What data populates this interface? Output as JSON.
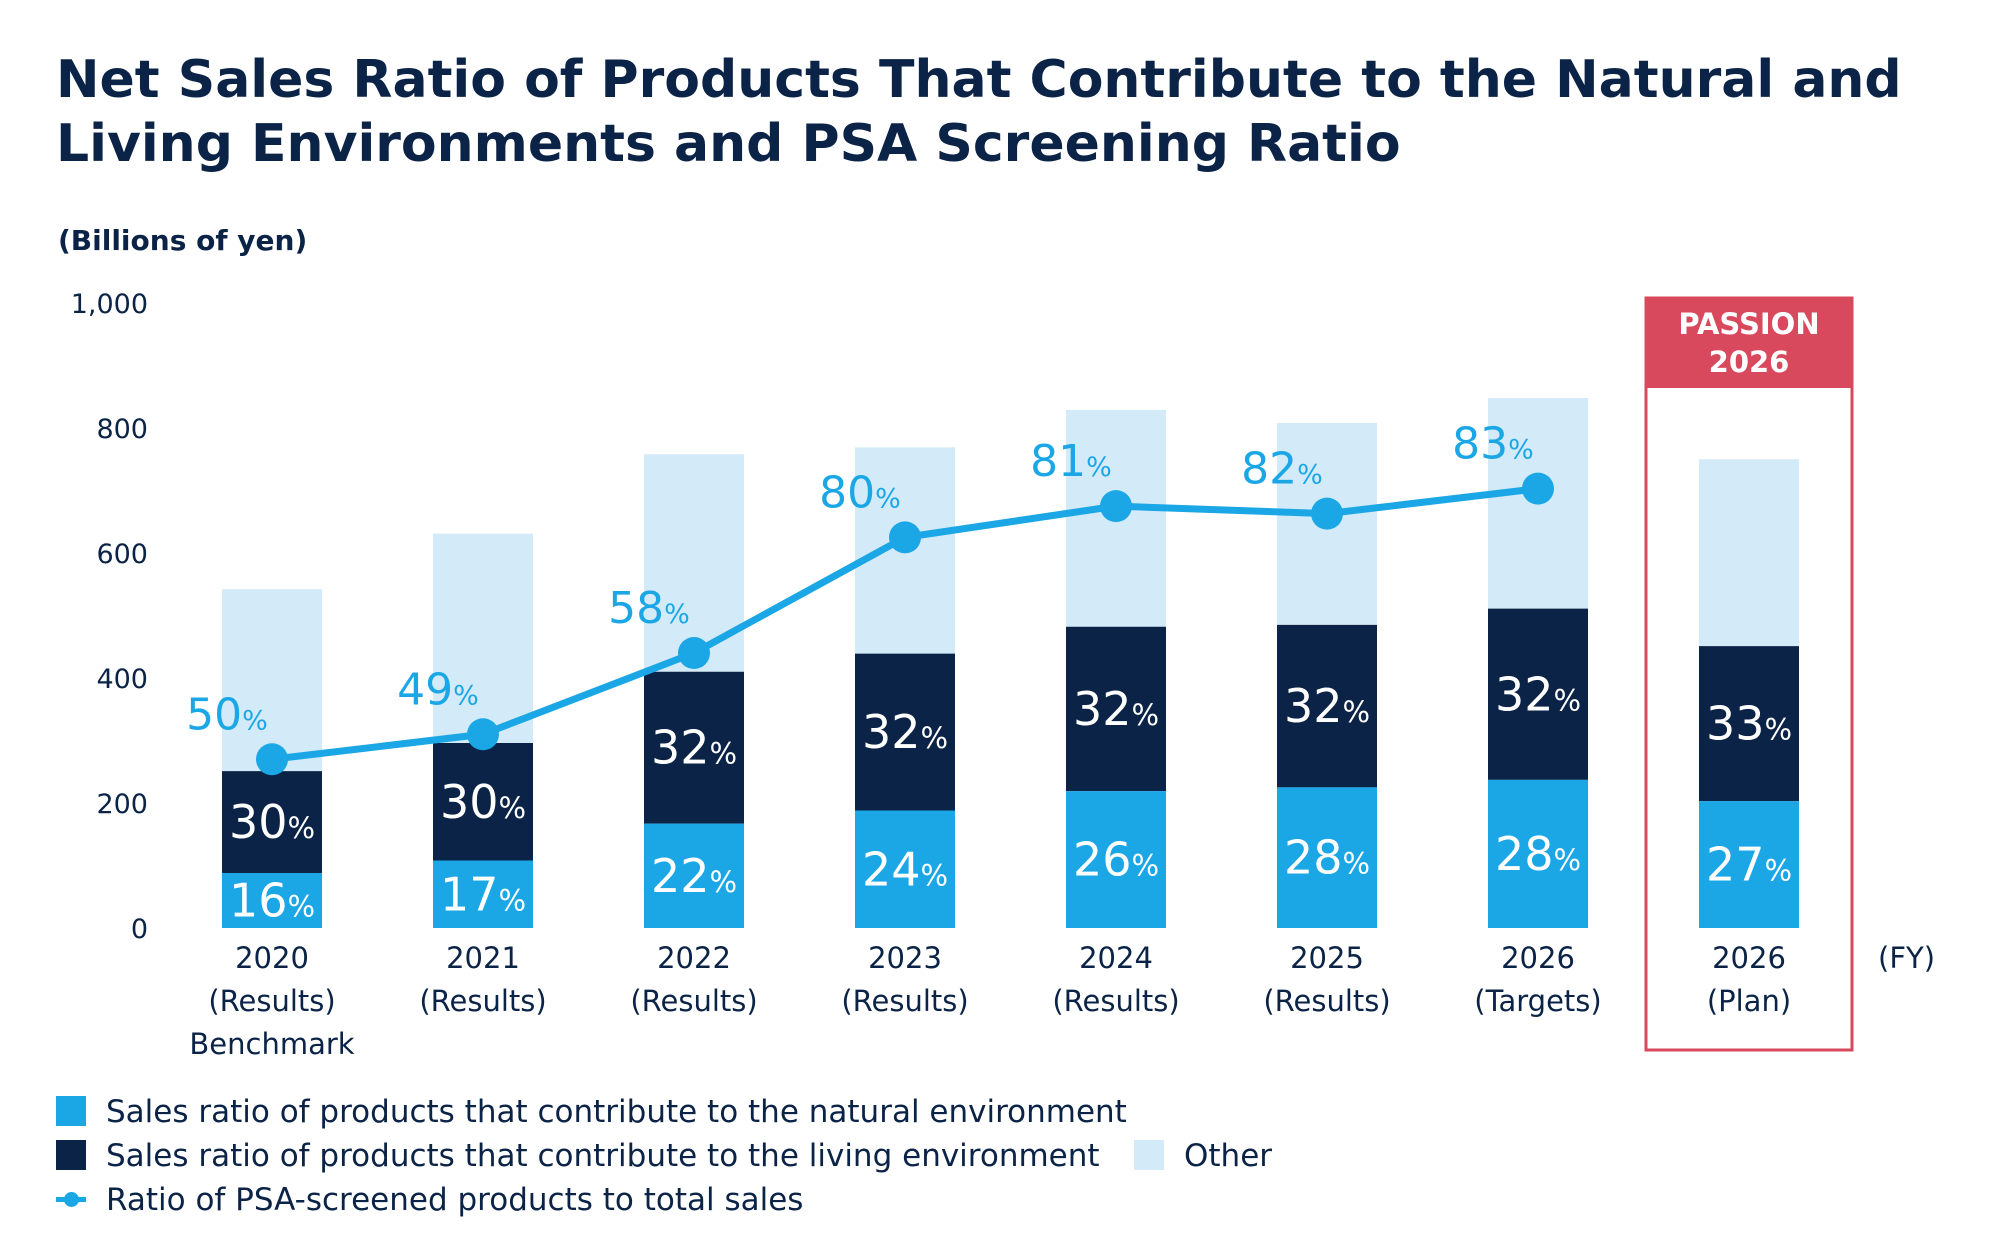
{
  "title": "Net Sales Ratio of Products That Contribute to the Natural and Living Environments and PSA Screening Ratio",
  "colors": {
    "natural": "#1ba7e6",
    "living": "#0b2346",
    "other": "#d3eaf8",
    "psa_line": "#1ba7e6",
    "passion_box": "#d9495e",
    "text_dark": "#0b2346"
  },
  "legend": {
    "natural": "Sales ratio of products that contribute to the natural environment",
    "living": "Sales ratio of products that contribute to the living environment",
    "other": "Other",
    "psa": "Ratio of PSA-screened products to total sales"
  },
  "chart_data": {
    "type": "bar",
    "ylabel": "(Billions of yen)",
    "xunit": "(FY)",
    "ylim": [
      0,
      1000
    ],
    "yticks": [
      "0",
      "200",
      "400",
      "600",
      "800",
      "1,000"
    ],
    "categories": [
      [
        "2020",
        "(Results)",
        "Benchmark"
      ],
      [
        "2021",
        "(Results)"
      ],
      [
        "2022",
        "(Results)"
      ],
      [
        "2023",
        "(Results)"
      ],
      [
        "2024",
        "(Results)"
      ],
      [
        "2025",
        "(Results)"
      ],
      [
        "2026",
        "(Targets)"
      ],
      [
        "2026",
        "(Plan)"
      ]
    ],
    "series": [
      {
        "name": "Sales ratio of products that contribute to the natural environment",
        "values": [
          88,
          108,
          167,
          188,
          219,
          225,
          237,
          203
        ],
        "labels": [
          "16",
          "17",
          "22",
          "24",
          "26",
          "28",
          "28",
          "27"
        ]
      },
      {
        "name": "Sales ratio of products that contribute to the living environment",
        "values": [
          163,
          188,
          243,
          251,
          263,
          260,
          274,
          248
        ],
        "labels": [
          "30",
          "30",
          "32",
          "32",
          "32",
          "32",
          "32",
          "33"
        ]
      },
      {
        "name": "Other",
        "values": [
          291,
          335,
          348,
          330,
          347,
          323,
          337,
          299
        ]
      }
    ],
    "psa_line": {
      "name": "Ratio of PSA-screened products to total sales",
      "values": [
        270,
        310,
        440,
        625,
        675,
        663,
        703
      ],
      "labels": [
        "50",
        "49",
        "58",
        "80",
        "81",
        "82",
        "83"
      ]
    },
    "percent_suffix": "%",
    "highlight": {
      "index": 7,
      "label_lines": [
        "PASSION",
        "2026"
      ]
    }
  }
}
